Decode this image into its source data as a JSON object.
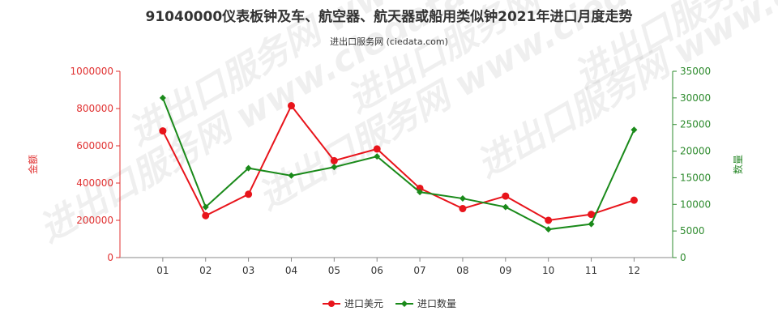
{
  "chart_data": {
    "type": "line",
    "title": "91040000仪表板钟及车、航空器、航天器或船用类似钟2021年进口月度走势",
    "subtitle": "进出口服务网 (ciedata.com)",
    "watermark": "进出口服务网 www.ciedata.com",
    "categories": [
      "01",
      "02",
      "03",
      "04",
      "05",
      "06",
      "07",
      "08",
      "09",
      "10",
      "11",
      "12"
    ],
    "y_left": {
      "label": "金额",
      "min": 0,
      "max": 1000000,
      "ticks": [
        0,
        200000,
        400000,
        600000,
        800000,
        1000000
      ],
      "color": "#e03030"
    },
    "y_right": {
      "label": "数量",
      "min": 0,
      "max": 35000,
      "ticks": [
        0,
        5000,
        10000,
        15000,
        20000,
        25000,
        30000,
        35000
      ],
      "color": "#2e8b2e"
    },
    "series": [
      {
        "name": "进口美元",
        "axis": "left",
        "color": "#e8141b",
        "values": [
          680000,
          225000,
          340000,
          815000,
          520000,
          583000,
          372000,
          263000,
          330000,
          200000,
          232000,
          308000
        ]
      },
      {
        "name": "进口数量",
        "axis": "right",
        "color": "#1a8a1a",
        "values": [
          30000,
          9500,
          16800,
          15400,
          17000,
          19000,
          12300,
          11100,
          9500,
          5300,
          6300,
          24000
        ]
      }
    ],
    "legend_position": "bottom-center",
    "grid": false
  }
}
